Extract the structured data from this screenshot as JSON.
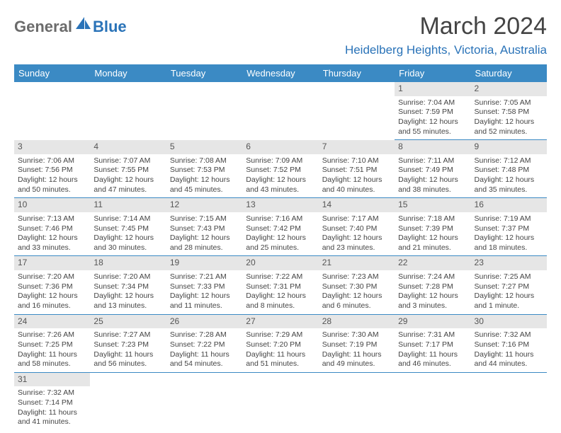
{
  "logo": {
    "part1": "General",
    "part2": "Blue"
  },
  "title": "March 2024",
  "subtitle": "Heidelberg Heights, Victoria, Australia",
  "colors": {
    "header_bg": "#3b8ac4",
    "header_text": "#ffffff",
    "daynum_bg": "#e6e6e6",
    "border": "#3b8ac4",
    "logo_gray": "#6b6b6b",
    "logo_blue": "#2a73b8",
    "subtitle_color": "#2a73b8",
    "text": "#444444",
    "bg": "#ffffff"
  },
  "typography": {
    "title_fontsize": 34,
    "subtitle_fontsize": 17,
    "header_fontsize": 13,
    "daynum_fontsize": 12,
    "detail_fontsize": 10.5
  },
  "days": [
    "Sunday",
    "Monday",
    "Tuesday",
    "Wednesday",
    "Thursday",
    "Friday",
    "Saturday"
  ],
  "weeks": [
    [
      null,
      null,
      null,
      null,
      null,
      {
        "n": "1",
        "sr": "Sunrise: 7:04 AM",
        "ss": "Sunset: 7:59 PM",
        "dl": "Daylight: 12 hours and 55 minutes."
      },
      {
        "n": "2",
        "sr": "Sunrise: 7:05 AM",
        "ss": "Sunset: 7:58 PM",
        "dl": "Daylight: 12 hours and 52 minutes."
      }
    ],
    [
      {
        "n": "3",
        "sr": "Sunrise: 7:06 AM",
        "ss": "Sunset: 7:56 PM",
        "dl": "Daylight: 12 hours and 50 minutes."
      },
      {
        "n": "4",
        "sr": "Sunrise: 7:07 AM",
        "ss": "Sunset: 7:55 PM",
        "dl": "Daylight: 12 hours and 47 minutes."
      },
      {
        "n": "5",
        "sr": "Sunrise: 7:08 AM",
        "ss": "Sunset: 7:53 PM",
        "dl": "Daylight: 12 hours and 45 minutes."
      },
      {
        "n": "6",
        "sr": "Sunrise: 7:09 AM",
        "ss": "Sunset: 7:52 PM",
        "dl": "Daylight: 12 hours and 43 minutes."
      },
      {
        "n": "7",
        "sr": "Sunrise: 7:10 AM",
        "ss": "Sunset: 7:51 PM",
        "dl": "Daylight: 12 hours and 40 minutes."
      },
      {
        "n": "8",
        "sr": "Sunrise: 7:11 AM",
        "ss": "Sunset: 7:49 PM",
        "dl": "Daylight: 12 hours and 38 minutes."
      },
      {
        "n": "9",
        "sr": "Sunrise: 7:12 AM",
        "ss": "Sunset: 7:48 PM",
        "dl": "Daylight: 12 hours and 35 minutes."
      }
    ],
    [
      {
        "n": "10",
        "sr": "Sunrise: 7:13 AM",
        "ss": "Sunset: 7:46 PM",
        "dl": "Daylight: 12 hours and 33 minutes."
      },
      {
        "n": "11",
        "sr": "Sunrise: 7:14 AM",
        "ss": "Sunset: 7:45 PM",
        "dl": "Daylight: 12 hours and 30 minutes."
      },
      {
        "n": "12",
        "sr": "Sunrise: 7:15 AM",
        "ss": "Sunset: 7:43 PM",
        "dl": "Daylight: 12 hours and 28 minutes."
      },
      {
        "n": "13",
        "sr": "Sunrise: 7:16 AM",
        "ss": "Sunset: 7:42 PM",
        "dl": "Daylight: 12 hours and 25 minutes."
      },
      {
        "n": "14",
        "sr": "Sunrise: 7:17 AM",
        "ss": "Sunset: 7:40 PM",
        "dl": "Daylight: 12 hours and 23 minutes."
      },
      {
        "n": "15",
        "sr": "Sunrise: 7:18 AM",
        "ss": "Sunset: 7:39 PM",
        "dl": "Daylight: 12 hours and 21 minutes."
      },
      {
        "n": "16",
        "sr": "Sunrise: 7:19 AM",
        "ss": "Sunset: 7:37 PM",
        "dl": "Daylight: 12 hours and 18 minutes."
      }
    ],
    [
      {
        "n": "17",
        "sr": "Sunrise: 7:20 AM",
        "ss": "Sunset: 7:36 PM",
        "dl": "Daylight: 12 hours and 16 minutes."
      },
      {
        "n": "18",
        "sr": "Sunrise: 7:20 AM",
        "ss": "Sunset: 7:34 PM",
        "dl": "Daylight: 12 hours and 13 minutes."
      },
      {
        "n": "19",
        "sr": "Sunrise: 7:21 AM",
        "ss": "Sunset: 7:33 PM",
        "dl": "Daylight: 12 hours and 11 minutes."
      },
      {
        "n": "20",
        "sr": "Sunrise: 7:22 AM",
        "ss": "Sunset: 7:31 PM",
        "dl": "Daylight: 12 hours and 8 minutes."
      },
      {
        "n": "21",
        "sr": "Sunrise: 7:23 AM",
        "ss": "Sunset: 7:30 PM",
        "dl": "Daylight: 12 hours and 6 minutes."
      },
      {
        "n": "22",
        "sr": "Sunrise: 7:24 AM",
        "ss": "Sunset: 7:28 PM",
        "dl": "Daylight: 12 hours and 3 minutes."
      },
      {
        "n": "23",
        "sr": "Sunrise: 7:25 AM",
        "ss": "Sunset: 7:27 PM",
        "dl": "Daylight: 12 hours and 1 minute."
      }
    ],
    [
      {
        "n": "24",
        "sr": "Sunrise: 7:26 AM",
        "ss": "Sunset: 7:25 PM",
        "dl": "Daylight: 11 hours and 58 minutes."
      },
      {
        "n": "25",
        "sr": "Sunrise: 7:27 AM",
        "ss": "Sunset: 7:23 PM",
        "dl": "Daylight: 11 hours and 56 minutes."
      },
      {
        "n": "26",
        "sr": "Sunrise: 7:28 AM",
        "ss": "Sunset: 7:22 PM",
        "dl": "Daylight: 11 hours and 54 minutes."
      },
      {
        "n": "27",
        "sr": "Sunrise: 7:29 AM",
        "ss": "Sunset: 7:20 PM",
        "dl": "Daylight: 11 hours and 51 minutes."
      },
      {
        "n": "28",
        "sr": "Sunrise: 7:30 AM",
        "ss": "Sunset: 7:19 PM",
        "dl": "Daylight: 11 hours and 49 minutes."
      },
      {
        "n": "29",
        "sr": "Sunrise: 7:31 AM",
        "ss": "Sunset: 7:17 PM",
        "dl": "Daylight: 11 hours and 46 minutes."
      },
      {
        "n": "30",
        "sr": "Sunrise: 7:32 AM",
        "ss": "Sunset: 7:16 PM",
        "dl": "Daylight: 11 hours and 44 minutes."
      }
    ],
    [
      {
        "n": "31",
        "sr": "Sunrise: 7:32 AM",
        "ss": "Sunset: 7:14 PM",
        "dl": "Daylight: 11 hours and 41 minutes."
      },
      null,
      null,
      null,
      null,
      null,
      null
    ]
  ]
}
